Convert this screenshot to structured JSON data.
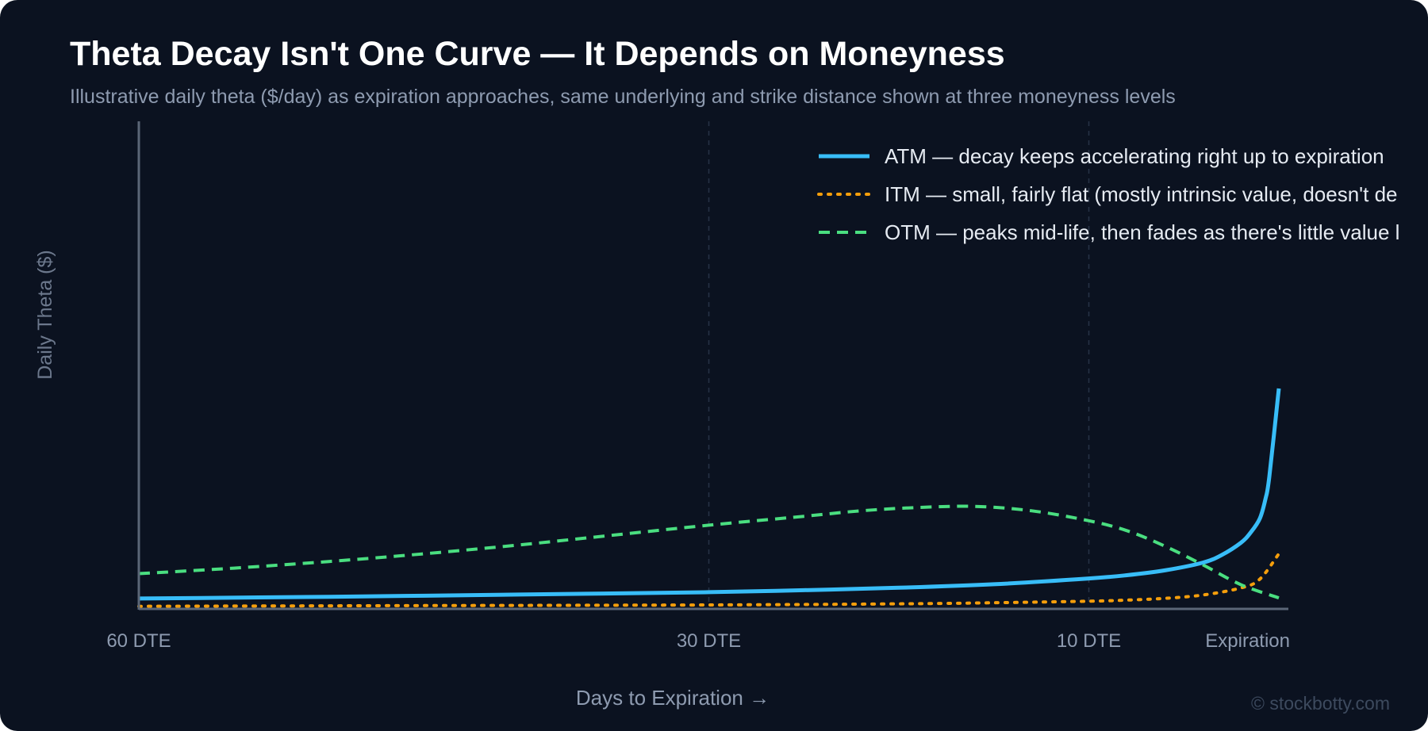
{
  "header": {
    "title": "Theta Decay Isn't One Curve — It Depends on Moneyness",
    "subtitle": "Illustrative daily theta ($/day) as expiration approaches, same underlying and strike distance shown at three moneyness levels"
  },
  "watermark": "© stockbotty.com",
  "chart_data": {
    "type": "line",
    "title": "Theta Decay Isn't One Curve — It Depends on Moneyness",
    "subtitle": "Illustrative daily theta ($/day) as expiration approaches, same underlying and strike distance shown at three moneyness levels",
    "xlabel": "Days to Expiration →",
    "ylabel": "Daily Theta ($)",
    "x_reversed": true,
    "xlim": [
      60,
      0
    ],
    "ylim": [
      0,
      100
    ],
    "x_ticks": [
      {
        "value": 60,
        "label": "60 DTE"
      },
      {
        "value": 30,
        "label": "30 DTE"
      },
      {
        "value": 10,
        "label": "10 DTE"
      },
      {
        "value": 0.4,
        "label": "Expiration"
      }
    ],
    "gridlines_at": [
      30,
      10
    ],
    "legend_position": "top-right",
    "series": [
      {
        "name": "ATM — decay keeps accelerating right up to expiration",
        "color": "#38bdf8",
        "style": "solid",
        "points": [
          [
            60,
            4.7
          ],
          [
            50,
            5.5
          ],
          [
            40,
            6.5
          ],
          [
            30,
            7.6
          ],
          [
            25,
            8.5
          ],
          [
            20,
            9.6
          ],
          [
            15,
            11.2
          ],
          [
            10,
            13.8
          ],
          [
            8,
            15.3
          ],
          [
            6,
            17.5
          ],
          [
            4,
            21
          ],
          [
            3,
            24.5
          ],
          [
            2,
            30
          ],
          [
            1.5,
            34.5
          ],
          [
            1,
            41
          ],
          [
            0.7,
            50
          ],
          [
            0.5,
            60
          ],
          [
            0,
            100
          ]
        ]
      },
      {
        "name": "ITM — small, fairly flat (mostly intrinsic value, doesn't de",
        "color": "#f59e0b",
        "style": "dotted",
        "points": [
          [
            60,
            1.2
          ],
          [
            50,
            1.4
          ],
          [
            40,
            1.6
          ],
          [
            30,
            1.8
          ],
          [
            20,
            2.3
          ],
          [
            15,
            2.8
          ],
          [
            10,
            3.5
          ],
          [
            8,
            4.0
          ],
          [
            6,
            4.8
          ],
          [
            4,
            6.3
          ],
          [
            2,
            9.5
          ],
          [
            1,
            13.5
          ],
          [
            0,
            25
          ]
        ]
      },
      {
        "name": "OTM — peaks mid-life, then fades as there's little value l",
        "color": "#4ade80",
        "style": "dashed",
        "points": [
          [
            60,
            16
          ],
          [
            55,
            18.5
          ],
          [
            50,
            21.5
          ],
          [
            45,
            25
          ],
          [
            40,
            29
          ],
          [
            35,
            33.5
          ],
          [
            30,
            38
          ],
          [
            25,
            42
          ],
          [
            22,
            44.5
          ],
          [
            19,
            46
          ],
          [
            16,
            46.5
          ],
          [
            13,
            44.5
          ],
          [
            10,
            40
          ],
          [
            8,
            35.5
          ],
          [
            6,
            28.5
          ],
          [
            4,
            20
          ],
          [
            2,
            11
          ],
          [
            0,
            5
          ]
        ]
      }
    ]
  }
}
